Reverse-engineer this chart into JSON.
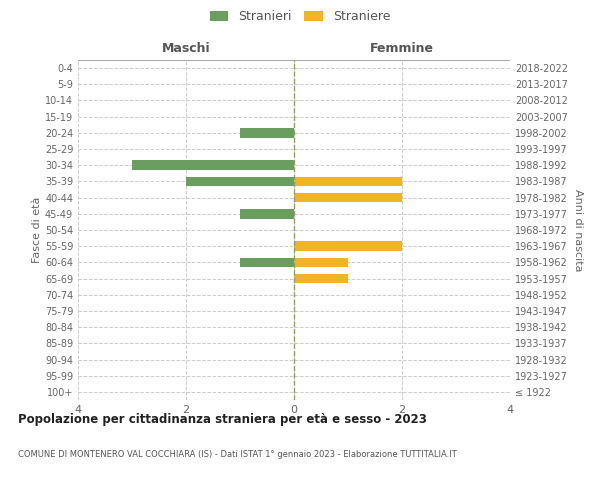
{
  "age_groups": [
    "100+",
    "95-99",
    "90-94",
    "85-89",
    "80-84",
    "75-79",
    "70-74",
    "65-69",
    "60-64",
    "55-59",
    "50-54",
    "45-49",
    "40-44",
    "35-39",
    "30-34",
    "25-29",
    "20-24",
    "15-19",
    "10-14",
    "5-9",
    "0-4"
  ],
  "birth_years": [
    "≤ 1922",
    "1923-1927",
    "1928-1932",
    "1933-1937",
    "1938-1942",
    "1943-1947",
    "1948-1952",
    "1953-1957",
    "1958-1962",
    "1963-1967",
    "1968-1972",
    "1973-1977",
    "1978-1982",
    "1983-1987",
    "1988-1992",
    "1993-1997",
    "1998-2002",
    "2003-2007",
    "2008-2012",
    "2013-2017",
    "2018-2022"
  ],
  "maschi": [
    0,
    0,
    0,
    0,
    0,
    0,
    0,
    0,
    1,
    0,
    0,
    1,
    0,
    2,
    3,
    0,
    1,
    0,
    0,
    0,
    0
  ],
  "femmine": [
    0,
    0,
    0,
    0,
    0,
    0,
    0,
    1,
    1,
    2,
    0,
    0,
    2,
    2,
    0,
    0,
    0,
    0,
    0,
    0,
    0
  ],
  "maschi_color": "#6a9e5e",
  "femmine_color": "#f0b429",
  "title": "Popolazione per cittadinanza straniera per età e sesso - 2023",
  "subtitle": "COMUNE DI MONTENERO VAL COCCHIARA (IS) - Dati ISTAT 1° gennaio 2023 - Elaborazione TUTTITALIA.IT",
  "left_label": "Maschi",
  "right_label": "Femmine",
  "ylabel_left": "Fasce di età",
  "ylabel_right": "Anni di nascita",
  "legend_maschi": "Stranieri",
  "legend_femmine": "Straniere",
  "xlim": 4,
  "bg_color": "#ffffff",
  "grid_color": "#cccccc",
  "center_line_color": "#999966"
}
